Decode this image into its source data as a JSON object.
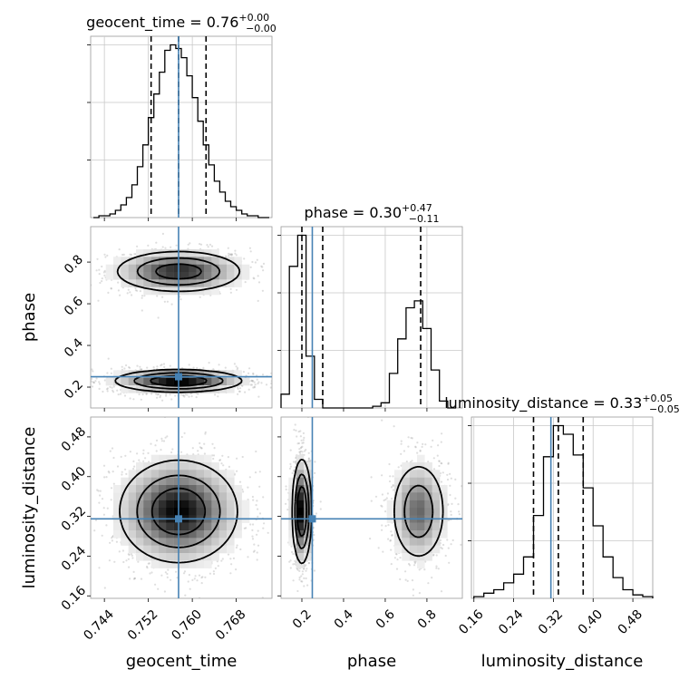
{
  "chart_data": {
    "type": "corner",
    "parameters": [
      "geocent_time",
      "phase",
      "luminosity_distance"
    ],
    "truths": {
      "geocent_time": 0.7575,
      "phase": 0.25,
      "luminosity_distance": 0.315
    },
    "ranges": {
      "geocent_time": [
        0.7415,
        0.7745
      ],
      "phase": [
        0.1,
        0.97
      ],
      "luminosity_distance": [
        0.155,
        0.52
      ]
    },
    "ticks": {
      "geocent_time": {
        "values": [
          0.744,
          0.752,
          0.76,
          0.768
        ],
        "labels": [
          "0.744",
          "0.752",
          "0.760",
          "0.768"
        ]
      },
      "phase": {
        "values": [
          0.2,
          0.4,
          0.6,
          0.8
        ],
        "labels": [
          "0.2",
          "0.4",
          "0.6",
          "0.8"
        ]
      },
      "luminosity_distance": {
        "values": [
          0.16,
          0.24,
          0.32,
          0.4,
          0.48
        ],
        "labels": [
          "0.16",
          "0.24",
          "0.32",
          "0.40",
          "0.48"
        ]
      }
    },
    "diagonal": [
      {
        "param": "geocent_time",
        "title_main": "geocent_time = 0.76",
        "title_plus": "+0.00",
        "title_minus": "−0.00",
        "quantiles": [
          0.7525,
          0.7575,
          0.7625
        ],
        "bins": [
          0.742,
          0.743,
          0.744,
          0.745,
          0.746,
          0.747,
          0.748,
          0.749,
          0.75,
          0.751,
          0.752,
          0.753,
          0.754,
          0.755,
          0.756,
          0.757,
          0.758,
          0.759,
          0.76,
          0.761,
          0.762,
          0.763,
          0.764,
          0.765,
          0.766,
          0.767,
          0.768,
          0.769,
          0.77,
          0.771,
          0.772,
          0.773,
          0.774
        ],
        "counts": [
          0,
          1,
          1,
          2,
          4,
          7,
          11,
          18,
          28,
          40,
          55,
          68,
          80,
          92,
          95,
          93,
          88,
          78,
          66,
          53,
          40,
          29,
          20,
          14,
          9,
          6,
          4,
          2,
          1,
          1,
          0,
          0,
          0
        ]
      },
      {
        "param": "phase",
        "title_main": "phase = 0.30",
        "title_plus": "+0.47",
        "title_minus": "−0.11",
        "quantiles": [
          0.2,
          0.3,
          0.77
        ],
        "bins": [
          0.1,
          0.14,
          0.18,
          0.22,
          0.26,
          0.3,
          0.34,
          0.38,
          0.42,
          0.46,
          0.5,
          0.54,
          0.58,
          0.62,
          0.66,
          0.7,
          0.74,
          0.78,
          0.82,
          0.86,
          0.9,
          0.94
        ],
        "counts": [
          8,
          82,
          100,
          30,
          5,
          0,
          0,
          0,
          0,
          0,
          0,
          1,
          3,
          20,
          40,
          58,
          62,
          46,
          22,
          4,
          0
        ]
      },
      {
        "param": "luminosity_distance",
        "title_main": "luminosity_distance = 0.33",
        "title_plus": "+0.05",
        "title_minus": "−0.05",
        "quantiles": [
          0.28,
          0.33,
          0.38
        ],
        "bins": [
          0.16,
          0.18,
          0.2,
          0.22,
          0.24,
          0.26,
          0.28,
          0.3,
          0.32,
          0.34,
          0.36,
          0.38,
          0.4,
          0.42,
          0.44,
          0.46,
          0.48,
          0.5,
          0.52
        ],
        "counts": [
          1,
          3,
          5,
          9,
          14,
          24,
          48,
          82,
          100,
          95,
          83,
          64,
          42,
          24,
          12,
          5,
          2,
          1
        ]
      }
    ],
    "pairs": [
      {
        "x": "geocent_time",
        "y": "phase",
        "blobs": [
          {
            "cx": 0.7575,
            "cy": 0.755,
            "sx": 0.0056,
            "sy": 0.048,
            "w": 0.85,
            "n": 900
          },
          {
            "cx": 0.7575,
            "cy": 0.23,
            "sx": 0.0056,
            "sy": 0.026,
            "w": 1.0,
            "n": 1300
          }
        ]
      },
      {
        "x": "geocent_time",
        "y": "luminosity_distance",
        "blobs": [
          {
            "cx": 0.7575,
            "cy": 0.33,
            "sx": 0.0052,
            "sy": 0.05,
            "w": 1.0,
            "n": 1800
          }
        ]
      },
      {
        "x": "phase",
        "y": "luminosity_distance",
        "blobs": [
          {
            "cx": 0.2,
            "cy": 0.33,
            "sx": 0.022,
            "sy": 0.05,
            "w": 1.0,
            "n": 1100
          },
          {
            "cx": 0.76,
            "cy": 0.33,
            "sx": 0.065,
            "sy": 0.05,
            "w": 0.55,
            "n": 800
          }
        ]
      }
    ],
    "contour_levels": [
      0.12,
      0.35,
      0.65
    ],
    "colors": {
      "truth": "#4682b4",
      "hist": "#000000",
      "grid": "#c8c8c8",
      "points": "#a0a0a0"
    }
  }
}
